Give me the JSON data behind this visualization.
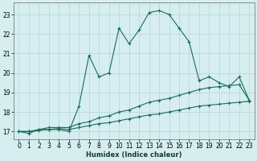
{
  "xlabel": "Humidex (Indice chaleur)",
  "background_color": "#d6eef0",
  "grid_color": "#b8d8dc",
  "line_color": "#1a6b5a",
  "x_values": [
    0,
    1,
    2,
    3,
    4,
    5,
    6,
    7,
    8,
    9,
    10,
    11,
    12,
    13,
    14,
    15,
    16,
    17,
    18,
    19,
    20,
    21,
    22,
    23
  ],
  "y_main": [
    17.0,
    16.9,
    17.1,
    17.1,
    17.1,
    17.0,
    18.3,
    20.9,
    19.8,
    20.0,
    22.3,
    21.5,
    22.2,
    23.1,
    23.2,
    23.0,
    22.3,
    21.6,
    19.6,
    19.8,
    19.5,
    19.3,
    19.8,
    18.6
  ],
  "y_line2": [
    17.0,
    17.0,
    17.1,
    17.2,
    17.2,
    17.2,
    17.4,
    17.5,
    17.7,
    17.8,
    18.0,
    18.1,
    18.3,
    18.5,
    18.6,
    18.7,
    18.85,
    19.0,
    19.15,
    19.25,
    19.3,
    19.35,
    19.4,
    18.6
  ],
  "y_line3": [
    17.0,
    17.0,
    17.05,
    17.1,
    17.15,
    17.1,
    17.2,
    17.3,
    17.4,
    17.45,
    17.55,
    17.65,
    17.75,
    17.85,
    17.9,
    18.0,
    18.1,
    18.2,
    18.3,
    18.35,
    18.4,
    18.45,
    18.5,
    18.55
  ],
  "ylim": [
    16.6,
    23.6
  ],
  "xlim": [
    -0.5,
    23.5
  ],
  "yticks": [
    17,
    18,
    19,
    20,
    21,
    22,
    23
  ],
  "xticks": [
    0,
    1,
    2,
    3,
    4,
    5,
    6,
    7,
    8,
    9,
    10,
    11,
    12,
    13,
    14,
    15,
    16,
    17,
    18,
    19,
    20,
    21,
    22,
    23
  ]
}
